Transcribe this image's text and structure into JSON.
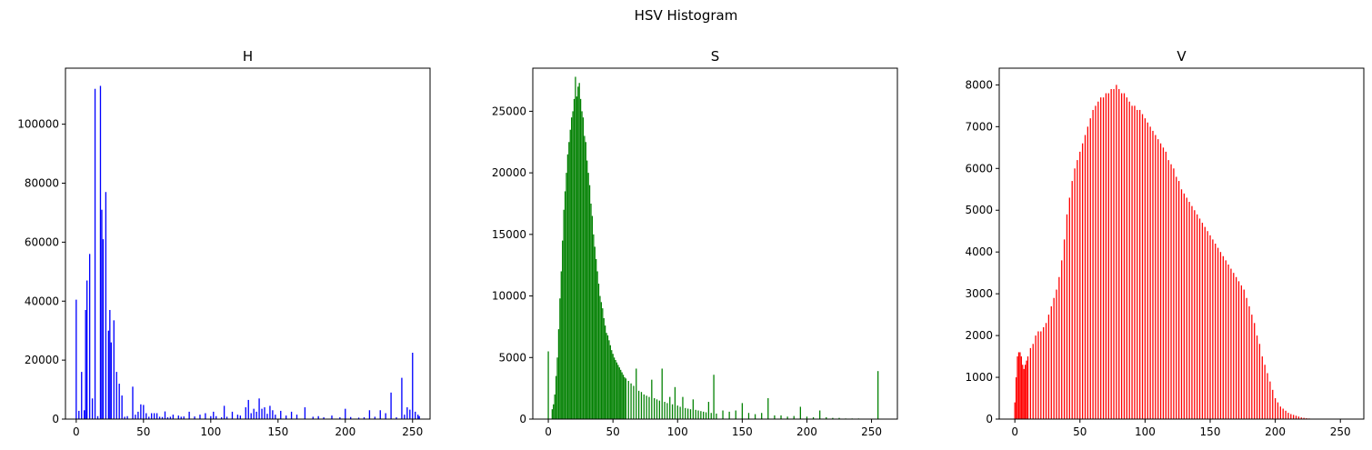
{
  "figure": {
    "title": "HSV Histogram"
  },
  "chart_data": [
    {
      "type": "bar",
      "title": "H",
      "color": "#0000ff",
      "xlim": [
        -8,
        263
      ],
      "ylim": [
        0,
        119000
      ],
      "xticks": [
        0,
        50,
        100,
        150,
        200,
        250
      ],
      "yticks": [
        0,
        20000,
        40000,
        60000,
        80000,
        100000
      ],
      "grid": false,
      "x": [
        0,
        2,
        4,
        6,
        7,
        8,
        10,
        12,
        14,
        16,
        18,
        19,
        20,
        22,
        24,
        25,
        26,
        28,
        30,
        32,
        34,
        36,
        38,
        42,
        44,
        46,
        48,
        50,
        52,
        54,
        56,
        58,
        60,
        62,
        64,
        66,
        68,
        70,
        72,
        76,
        78,
        80,
        84,
        88,
        92,
        96,
        100,
        102,
        104,
        108,
        110,
        112,
        116,
        120,
        122,
        126,
        128,
        130,
        132,
        134,
        136,
        138,
        140,
        142,
        144,
        146,
        148,
        152,
        156,
        160,
        164,
        170,
        176,
        180,
        184,
        190,
        196,
        200,
        204,
        210,
        214,
        218,
        222,
        226,
        230,
        234,
        238,
        242,
        244,
        246,
        248,
        250,
        252,
        254,
        255
      ],
      "values": [
        40500,
        2800,
        16000,
        3000,
        37000,
        47000,
        56000,
        7000,
        112000,
        1000,
        113000,
        71000,
        61000,
        77000,
        30000,
        37000,
        26000,
        33500,
        16000,
        12000,
        8000,
        800,
        1000,
        11000,
        1500,
        2500,
        5000,
        4800,
        2000,
        800,
        2000,
        2000,
        2000,
        800,
        700,
        2600,
        600,
        800,
        1500,
        1200,
        800,
        900,
        2500,
        900,
        1500,
        2000,
        1000,
        2500,
        1000,
        600,
        4500,
        800,
        2500,
        1500,
        1200,
        4000,
        6500,
        2000,
        3500,
        2500,
        7000,
        3500,
        4000,
        1800,
        4500,
        3000,
        1500,
        2800,
        1200,
        2500,
        1500,
        4000,
        800,
        1000,
        600,
        1200,
        600,
        3500,
        700,
        500,
        600,
        3000,
        800,
        3000,
        2000,
        9000,
        600,
        14000,
        1500,
        4000,
        3200,
        22500,
        2500,
        1500,
        1000
      ]
    },
    {
      "type": "bar",
      "title": "S",
      "color": "#008000",
      "xlim": [
        -12,
        270
      ],
      "ylim": [
        0,
        28500
      ],
      "xticks": [
        0,
        50,
        100,
        150,
        200,
        250
      ],
      "yticks": [
        0,
        5000,
        10000,
        15000,
        20000,
        25000
      ],
      "grid": false,
      "x": [
        0,
        1,
        2,
        3,
        4,
        5,
        6,
        7,
        8,
        9,
        10,
        11,
        12,
        13,
        14,
        15,
        16,
        17,
        18,
        19,
        20,
        21,
        22,
        23,
        24,
        25,
        26,
        27,
        28,
        29,
        30,
        31,
        32,
        33,
        34,
        35,
        36,
        37,
        38,
        39,
        40,
        41,
        42,
        43,
        44,
        45,
        46,
        47,
        48,
        49,
        50,
        51,
        52,
        53,
        54,
        55,
        56,
        57,
        58,
        59,
        60,
        62,
        64,
        66,
        68,
        70,
        72,
        74,
        76,
        78,
        80,
        82,
        84,
        86,
        88,
        90,
        92,
        94,
        96,
        98,
        100,
        102,
        104,
        106,
        108,
        110,
        112,
        114,
        116,
        118,
        120,
        122,
        124,
        126,
        128,
        130,
        135,
        140,
        145,
        150,
        155,
        160,
        165,
        170,
        175,
        180,
        185,
        190,
        195,
        200,
        205,
        210,
        215,
        220,
        225,
        230,
        235,
        240,
        245,
        250,
        255
      ],
      "values": [
        5500,
        0,
        0,
        800,
        1200,
        2000,
        3500,
        5000,
        7300,
        9800,
        12000,
        14500,
        17000,
        18500,
        20000,
        21500,
        22500,
        23500,
        24500,
        25000,
        26000,
        27800,
        26200,
        27000,
        27300,
        26000,
        25000,
        24500,
        23000,
        22500,
        21000,
        20000,
        19000,
        17500,
        16500,
        15000,
        14000,
        13000,
        12000,
        11000,
        10000,
        9500,
        9000,
        8200,
        7600,
        7000,
        6800,
        6400,
        6000,
        5600,
        5300,
        5000,
        4800,
        4600,
        4400,
        4200,
        4000,
        3800,
        3600,
        3400,
        3300,
        3100,
        2900,
        2700,
        4100,
        2300,
        2200,
        2000,
        1900,
        1800,
        3200,
        1700,
        1600,
        1500,
        4100,
        1400,
        1300,
        1800,
        1200,
        2600,
        1100,
        1000,
        1800,
        900,
        850,
        800,
        1600,
        750,
        700,
        650,
        600,
        550,
        1400,
        500,
        3600,
        450,
        700,
        600,
        700,
        1300,
        500,
        400,
        500,
        1700,
        300,
        300,
        200,
        250,
        1000,
        200,
        150,
        700,
        150,
        100,
        100,
        50,
        50,
        50,
        30,
        20,
        3900
      ]
    },
    {
      "type": "bar",
      "title": "V",
      "color": "#ff0000",
      "xlim": [
        -12,
        268
      ],
      "ylim": [
        0,
        8400
      ],
      "xticks": [
        0,
        50,
        100,
        150,
        200,
        250
      ],
      "yticks": [
        0,
        1000,
        2000,
        3000,
        4000,
        5000,
        6000,
        7000,
        8000
      ],
      "grid": false,
      "x": [
        0,
        1,
        2,
        3,
        4,
        5,
        6,
        7,
        8,
        9,
        10,
        12,
        14,
        16,
        18,
        20,
        22,
        24,
        26,
        28,
        30,
        32,
        34,
        36,
        38,
        40,
        42,
        44,
        46,
        48,
        50,
        52,
        54,
        56,
        58,
        60,
        62,
        64,
        66,
        68,
        70,
        72,
        74,
        76,
        78,
        80,
        82,
        84,
        86,
        88,
        90,
        92,
        94,
        96,
        98,
        100,
        102,
        104,
        106,
        108,
        110,
        112,
        114,
        116,
        118,
        120,
        122,
        124,
        126,
        128,
        130,
        132,
        134,
        136,
        138,
        140,
        142,
        144,
        146,
        148,
        150,
        152,
        154,
        156,
        158,
        160,
        162,
        164,
        166,
        168,
        170,
        172,
        174,
        176,
        178,
        180,
        182,
        184,
        186,
        188,
        190,
        192,
        194,
        196,
        198,
        200,
        202,
        204,
        206,
        208,
        210,
        212,
        214,
        216,
        218,
        220,
        222,
        224,
        226,
        228,
        230,
        232,
        234,
        236,
        238,
        240,
        242,
        244,
        246,
        248,
        250
      ],
      "values": [
        400,
        1000,
        1500,
        1600,
        1600,
        1500,
        1300,
        1200,
        1300,
        1400,
        1500,
        1700,
        1800,
        2000,
        2100,
        2100,
        2200,
        2300,
        2500,
        2700,
        2900,
        3100,
        3400,
        3800,
        4300,
        4900,
        5300,
        5700,
        6000,
        6200,
        6400,
        6600,
        6800,
        7000,
        7200,
        7400,
        7500,
        7600,
        7700,
        7700,
        7800,
        7800,
        7900,
        7900,
        8000,
        7900,
        7800,
        7800,
        7700,
        7600,
        7500,
        7500,
        7400,
        7400,
        7300,
        7200,
        7100,
        7000,
        6900,
        6800,
        6700,
        6600,
        6500,
        6400,
        6200,
        6100,
        6000,
        5800,
        5700,
        5500,
        5400,
        5300,
        5200,
        5100,
        5000,
        4900,
        4800,
        4700,
        4600,
        4500,
        4400,
        4300,
        4200,
        4100,
        4000,
        3900,
        3800,
        3700,
        3600,
        3500,
        3400,
        3300,
        3200,
        3100,
        2900,
        2700,
        2500,
        2300,
        2000,
        1800,
        1500,
        1300,
        1100,
        900,
        700,
        500,
        400,
        300,
        250,
        200,
        150,
        120,
        100,
        80,
        60,
        40,
        30,
        20,
        15,
        10,
        5,
        3,
        2,
        1,
        1,
        0,
        0,
        0,
        0,
        0,
        0
      ]
    }
  ]
}
